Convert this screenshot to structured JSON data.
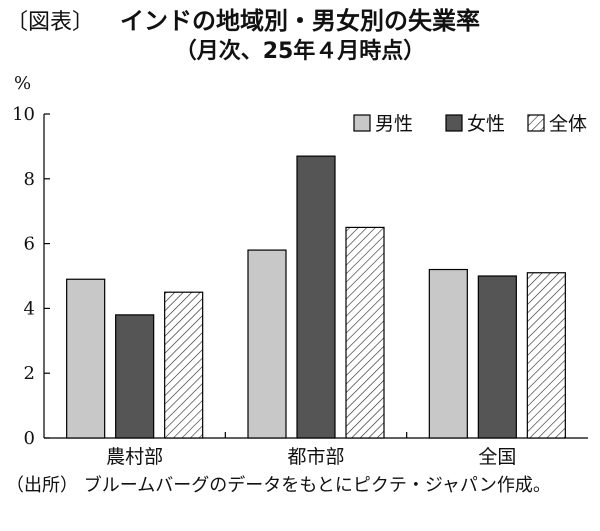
{
  "figure": {
    "label": "〔図表〕",
    "title": "インドの地域別・男女別の失業率",
    "subtitle": "（月次、25年４月時点）",
    "source_label": "（出所）",
    "source_text": "ブルームバーグのデータをもとにピクテ・ジャパン作成。"
  },
  "chart_data": {
    "type": "bar",
    "title": "インドの地域別・男女別の失業率",
    "subtitle": "（月次、25年４月時点）",
    "ylabel": "%",
    "ylim": [
      0,
      10
    ],
    "yticks": [
      0,
      2,
      4,
      6,
      8,
      10
    ],
    "categories": [
      "農村部",
      "都市部",
      "全国"
    ],
    "series": [
      {
        "name": "男性",
        "values": [
          4.9,
          5.8,
          5.2
        ],
        "color": "#c8c8c8",
        "pattern": "solid"
      },
      {
        "name": "女性",
        "values": [
          3.8,
          8.7,
          5.0
        ],
        "color": "#555555",
        "pattern": "solid"
      },
      {
        "name": "全体",
        "values": [
          4.5,
          6.5,
          5.1
        ],
        "color": "#ffffff",
        "pattern": "hatch"
      }
    ],
    "legend": "top-right",
    "grid": false
  }
}
